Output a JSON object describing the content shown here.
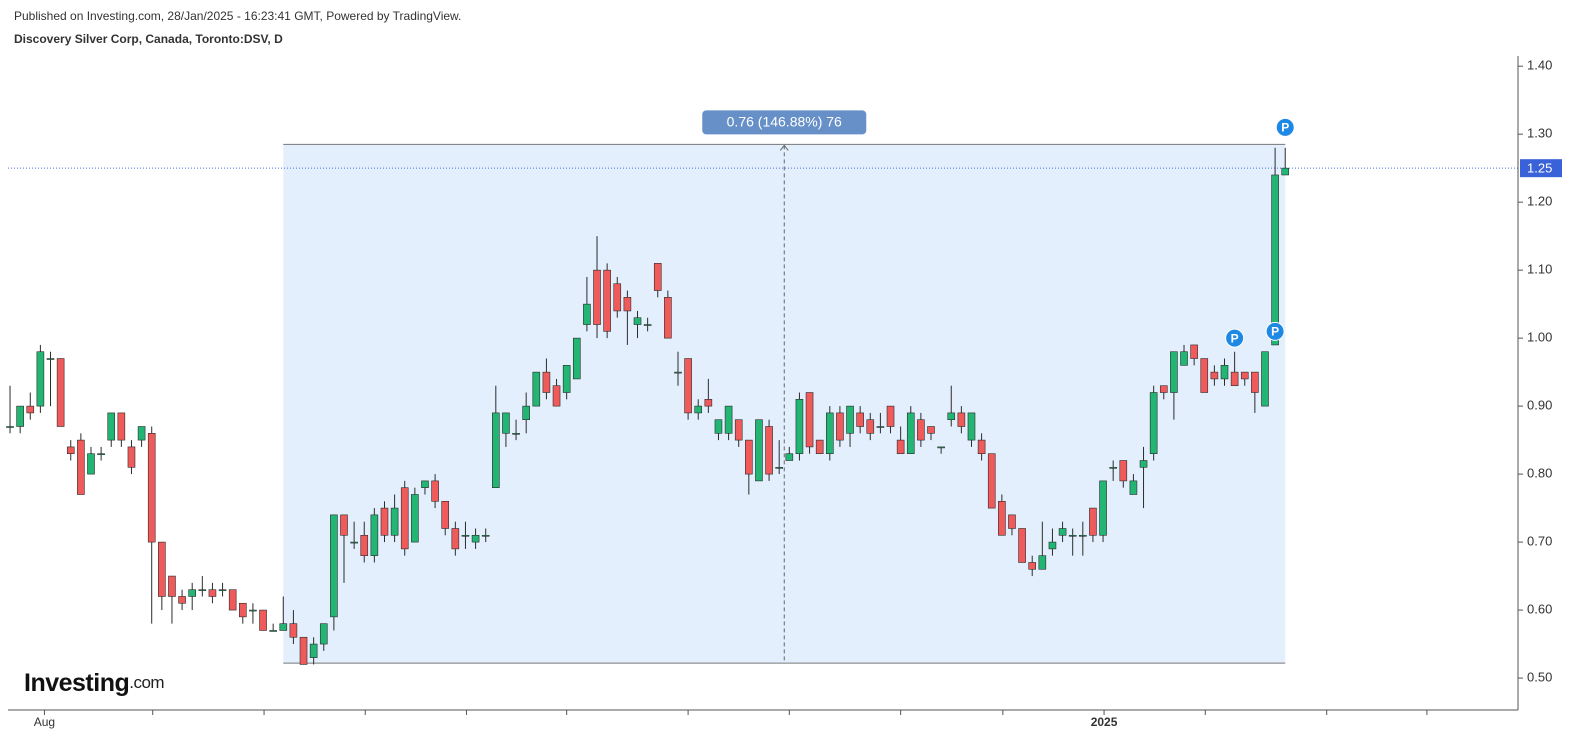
{
  "header": {
    "published": "Published on Investing.com, 28/Jan/2025 - 16:23:41 GMT, Powered by TradingView.",
    "symbol": "Discovery Silver Corp, Canada, Toronto:DSV, D"
  },
  "logo": {
    "name": "Investing",
    "suffix": ".com"
  },
  "chart_data": {
    "type": "candlestick",
    "open": [
      0.87,
      0.87,
      0.9,
      0.9,
      0.97,
      0.97,
      0.84,
      0.85,
      0.8,
      0.83,
      0.85,
      0.89,
      0.84,
      0.85,
      0.86,
      0.7,
      0.65,
      0.62,
      0.62,
      0.63,
      0.63,
      0.63,
      0.63,
      0.61,
      0.6,
      0.6,
      0.57,
      0.57,
      0.58,
      0.56,
      0.53,
      0.55,
      0.59,
      0.74,
      0.7,
      0.71,
      0.68,
      0.75,
      0.71,
      0.78,
      0.7,
      0.78,
      0.79,
      0.76,
      0.72,
      0.71,
      0.7,
      0.71,
      0.78,
      0.86,
      0.86,
      0.88,
      0.9,
      0.95,
      0.93,
      0.92,
      0.94,
      1.02,
      1.1,
      1.1,
      1.08,
      1.06,
      1.02,
      1.02,
      1.11,
      1.06,
      0.95,
      0.97,
      0.89,
      0.91,
      0.86,
      0.86,
      0.88,
      0.85,
      0.79,
      0.87,
      0.81,
      0.82,
      0.83,
      0.92,
      0.85,
      0.83,
      0.89,
      0.86,
      0.89,
      0.88,
      0.87,
      0.9,
      0.85,
      0.83,
      0.88,
      0.87,
      0.84,
      0.88,
      0.89,
      0.85,
      0.85,
      0.83,
      0.76,
      0.74,
      0.72,
      0.67,
      0.66,
      0.69,
      0.71,
      0.71,
      0.71,
      0.75,
      0.71,
      0.81,
      0.82,
      0.77,
      0.81,
      0.83,
      0.93,
      0.92,
      0.96,
      0.99,
      0.97,
      0.95,
      0.94,
      0.95,
      0.95,
      0.95,
      0.9,
      0.99,
      1.24
    ],
    "high": [
      0.93,
      0.9,
      0.92,
      0.99,
      0.98,
      0.97,
      0.85,
      0.86,
      0.84,
      0.84,
      0.89,
      0.89,
      0.85,
      0.87,
      0.87,
      0.7,
      0.65,
      0.63,
      0.64,
      0.65,
      0.64,
      0.64,
      0.63,
      0.61,
      0.61,
      0.6,
      0.58,
      0.62,
      0.6,
      0.56,
      0.56,
      0.58,
      0.74,
      0.74,
      0.73,
      0.73,
      0.75,
      0.76,
      0.77,
      0.79,
      0.78,
      0.79,
      0.8,
      0.76,
      0.73,
      0.73,
      0.72,
      0.72,
      0.93,
      0.89,
      0.88,
      0.92,
      0.95,
      0.97,
      0.94,
      0.96,
      1.0,
      1.09,
      1.15,
      1.11,
      1.09,
      1.07,
      1.04,
      1.03,
      1.11,
      1.07,
      0.98,
      0.97,
      0.91,
      0.94,
      0.88,
      0.9,
      0.88,
      0.85,
      0.88,
      0.88,
      0.85,
      0.84,
      0.92,
      0.92,
      0.85,
      0.9,
      0.9,
      0.9,
      0.9,
      0.89,
      0.89,
      0.9,
      0.87,
      0.9,
      0.89,
      0.87,
      0.84,
      0.93,
      0.9,
      0.89,
      0.86,
      0.83,
      0.77,
      0.74,
      0.72,
      0.68,
      0.73,
      0.72,
      0.73,
      0.72,
      0.73,
      0.75,
      0.79,
      0.82,
      0.82,
      0.8,
      0.84,
      0.93,
      0.93,
      0.98,
      0.99,
      0.99,
      0.97,
      0.96,
      0.97,
      0.98,
      0.95,
      0.95,
      0.98,
      1.28,
      1.28
    ],
    "low": [
      0.86,
      0.86,
      0.88,
      0.89,
      0.9,
      0.87,
      0.82,
      0.77,
      0.8,
      0.82,
      0.84,
      0.84,
      0.8,
      0.84,
      0.58,
      0.6,
      0.58,
      0.6,
      0.6,
      0.62,
      0.61,
      0.62,
      0.6,
      0.58,
      0.58,
      0.57,
      0.57,
      0.57,
      0.55,
      0.52,
      0.52,
      0.54,
      0.57,
      0.64,
      0.69,
      0.67,
      0.67,
      0.7,
      0.7,
      0.68,
      0.7,
      0.77,
      0.75,
      0.71,
      0.68,
      0.69,
      0.69,
      0.7,
      0.78,
      0.84,
      0.85,
      0.86,
      0.9,
      0.91,
      0.9,
      0.91,
      0.94,
      1.01,
      1.0,
      1.0,
      1.03,
      0.99,
      1.0,
      1.01,
      1.06,
      1.0,
      0.93,
      0.88,
      0.88,
      0.89,
      0.85,
      0.85,
      0.84,
      0.77,
      0.79,
      0.79,
      0.8,
      0.82,
      0.82,
      0.83,
      0.83,
      0.82,
      0.84,
      0.84,
      0.86,
      0.85,
      0.86,
      0.86,
      0.83,
      0.83,
      0.84,
      0.85,
      0.83,
      0.87,
      0.86,
      0.84,
      0.82,
      0.75,
      0.71,
      0.71,
      0.67,
      0.65,
      0.66,
      0.68,
      0.7,
      0.68,
      0.68,
      0.7,
      0.7,
      0.79,
      0.78,
      0.77,
      0.75,
      0.82,
      0.91,
      0.88,
      0.96,
      0.96,
      0.92,
      0.93,
      0.93,
      0.93,
      0.93,
      0.89,
      0.9,
      0.99,
      1.24
    ],
    "close": [
      0.87,
      0.9,
      0.89,
      0.98,
      0.97,
      0.87,
      0.83,
      0.77,
      0.83,
      0.83,
      0.89,
      0.85,
      0.81,
      0.87,
      0.7,
      0.62,
      0.62,
      0.61,
      0.63,
      0.63,
      0.62,
      0.63,
      0.6,
      0.59,
      0.6,
      0.57,
      0.57,
      0.58,
      0.56,
      0.52,
      0.55,
      0.58,
      0.74,
      0.71,
      0.7,
      0.68,
      0.74,
      0.71,
      0.75,
      0.69,
      0.77,
      0.79,
      0.76,
      0.72,
      0.69,
      0.71,
      0.71,
      0.71,
      0.89,
      0.89,
      0.86,
      0.9,
      0.95,
      0.92,
      0.9,
      0.96,
      1.0,
      1.05,
      1.02,
      1.01,
      1.04,
      1.04,
      1.03,
      1.02,
      1.07,
      1.0,
      0.95,
      0.89,
      0.9,
      0.9,
      0.88,
      0.9,
      0.85,
      0.8,
      0.88,
      0.8,
      0.81,
      0.83,
      0.91,
      0.84,
      0.83,
      0.89,
      0.85,
      0.9,
      0.87,
      0.86,
      0.87,
      0.87,
      0.83,
      0.89,
      0.85,
      0.86,
      0.84,
      0.89,
      0.87,
      0.89,
      0.83,
      0.75,
      0.71,
      0.72,
      0.67,
      0.66,
      0.68,
      0.7,
      0.72,
      0.71,
      0.71,
      0.71,
      0.79,
      0.81,
      0.79,
      0.79,
      0.82,
      0.92,
      0.92,
      0.98,
      0.98,
      0.97,
      0.92,
      0.94,
      0.96,
      0.93,
      0.94,
      0.92,
      0.98,
      1.24,
      1.25
    ],
    "up_color": "#22b573",
    "down_color": "#ef5b5b",
    "wick_color": "#2b2b2b",
    "xlim": [
      -0.2,
      149
    ],
    "ylim": [
      0.453,
      1.415
    ],
    "yticks": [
      {
        "value": 0.5,
        "label": "0.50"
      },
      {
        "value": 0.6,
        "label": "0.60"
      },
      {
        "value": 0.7,
        "label": "0.70"
      },
      {
        "value": 0.8,
        "label": "0.80"
      },
      {
        "value": 0.9,
        "label": "0.90"
      },
      {
        "value": 1.0,
        "label": "1.00"
      },
      {
        "value": 1.1,
        "label": "1.10"
      },
      {
        "value": 1.2,
        "label": "1.20"
      },
      {
        "value": 1.3,
        "label": "1.30"
      },
      {
        "value": 1.4,
        "label": "1.40"
      }
    ],
    "xticks": [
      {
        "value": 3.4,
        "label": "Aug"
      },
      {
        "value": 108.1,
        "label": "2025"
      }
    ],
    "xtick_marks": [
      3.4,
      14.1,
      25.1,
      35.1,
      45.1,
      55.0,
      67.0,
      77.0,
      88.0,
      98.1,
      108.1,
      118.1,
      130.1,
      140.0
    ],
    "last_price": 1.25,
    "range_box": {
      "x": [
        27.0,
        126.0
      ],
      "y": [
        0.522,
        1.285
      ],
      "label": "0.76 (146.88%) 76"
    },
    "markers": [
      {
        "index": 126,
        "price": 1.31,
        "label": "P"
      },
      {
        "index": 121,
        "price": 1.0,
        "label": "P"
      },
      {
        "index": 125,
        "price": 1.01,
        "label": "P"
      }
    ]
  }
}
